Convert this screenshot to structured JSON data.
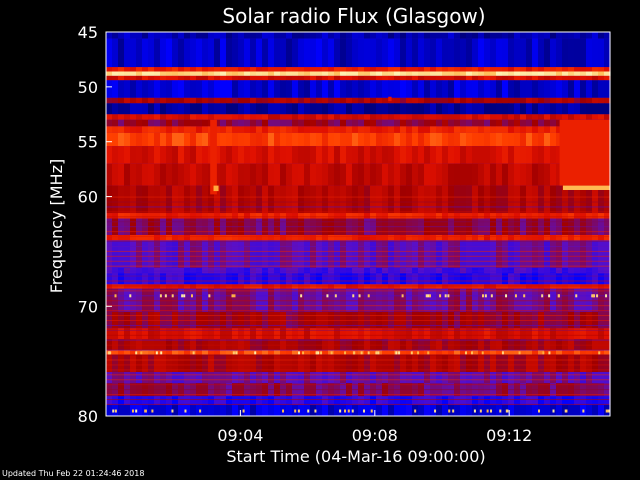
{
  "chart_data": {
    "type": "heatmap",
    "title": "Solar radio Flux (Glasgow)",
    "xlabel": "Start Time (04-Mar-16 09:00:00)",
    "ylabel": "Frequency [MHz]",
    "x_unit": "minutes after 04-Mar-16 09:00:00",
    "xlim": [
      0,
      15
    ],
    "ylim": [
      80,
      45
    ],
    "x_ticks": [
      {
        "value": 4,
        "label": "09:04"
      },
      {
        "value": 8,
        "label": "09:08"
      },
      {
        "value": 12,
        "label": "09:12"
      }
    ],
    "y_ticks": [
      {
        "value": 45,
        "label": "45"
      },
      {
        "value": 50,
        "label": "50"
      },
      {
        "value": 55,
        "label": "55"
      },
      {
        "value": 60,
        "label": "60"
      },
      {
        "value": 70,
        "label": "70"
      },
      {
        "value": 80,
        "label": "80"
      }
    ],
    "colormap": [
      "#000080",
      "#0000ff",
      "#5a10c8",
      "#a00000",
      "#e01000",
      "#ff4000",
      "#ffb040",
      "#fff0b0"
    ],
    "bands": [
      {
        "y0": 45.0,
        "y1": 45.6,
        "level": 0.05
      },
      {
        "y0": 45.6,
        "y1": 48.2,
        "level": 0.08
      },
      {
        "y0": 48.2,
        "y1": 48.6,
        "level": 0.6
      },
      {
        "y0": 48.6,
        "y1": 49.0,
        "level": 0.95
      },
      {
        "y0": 49.0,
        "y1": 49.4,
        "level": 0.55
      },
      {
        "y0": 49.4,
        "y1": 51.0,
        "level": 0.09
      },
      {
        "y0": 51.0,
        "y1": 51.5,
        "level": 0.45
      },
      {
        "y0": 51.5,
        "y1": 52.5,
        "level": 0.02
      },
      {
        "y0": 52.5,
        "y1": 53.0,
        "level": 0.55
      },
      {
        "y0": 53.0,
        "y1": 53.6,
        "level": 0.4
      },
      {
        "y0": 53.6,
        "y1": 54.2,
        "level": 0.62
      },
      {
        "y0": 54.2,
        "y1": 55.4,
        "level": 0.7
      },
      {
        "y0": 55.4,
        "y1": 57.0,
        "level": 0.55
      },
      {
        "y0": 57.0,
        "y1": 59.0,
        "level": 0.5
      },
      {
        "y0": 59.0,
        "y1": 61.5,
        "level": 0.47
      },
      {
        "y0": 61.5,
        "y1": 62.0,
        "level": 0.62
      },
      {
        "y0": 62.0,
        "y1": 63.5,
        "level": 0.38
      },
      {
        "y0": 63.5,
        "y1": 64.0,
        "level": 0.62
      },
      {
        "y0": 64.0,
        "y1": 66.5,
        "level": 0.3
      },
      {
        "y0": 66.5,
        "y1": 67.0,
        "level": 0.25
      },
      {
        "y0": 67.0,
        "y1": 68.0,
        "level": 0.2
      },
      {
        "y0": 68.0,
        "y1": 68.4,
        "level": 0.6
      },
      {
        "y0": 68.4,
        "y1": 70.5,
        "level": 0.33
      },
      {
        "y0": 70.5,
        "y1": 72.0,
        "level": 0.42
      },
      {
        "y0": 72.0,
        "y1": 73.0,
        "level": 0.55
      },
      {
        "y0": 73.0,
        "y1": 74.0,
        "level": 0.45
      },
      {
        "y0": 74.0,
        "y1": 74.4,
        "level": 0.72
      },
      {
        "y0": 74.4,
        "y1": 76.0,
        "level": 0.45
      },
      {
        "y0": 76.0,
        "y1": 77.0,
        "level": 0.3
      },
      {
        "y0": 77.0,
        "y1": 78.2,
        "level": 0.36
      },
      {
        "y0": 78.2,
        "y1": 79.0,
        "level": 0.2
      },
      {
        "y0": 79.0,
        "y1": 80.0,
        "level": 0.1
      }
    ],
    "events": [
      {
        "x0": 3.1,
        "x1": 3.3,
        "y0": 53.0,
        "y1": 59.8,
        "level": 0.62
      },
      {
        "x0": 3.2,
        "x1": 3.35,
        "y0": 59.0,
        "y1": 59.5,
        "level": 0.85
      },
      {
        "x0": 13.5,
        "x1": 15.0,
        "y0": 53.0,
        "y1": 59.0,
        "level": 0.62
      },
      {
        "x0": 13.6,
        "x1": 15.0,
        "y0": 59.0,
        "y1": 59.4,
        "level": 0.88
      },
      {
        "x0": 8.4,
        "x1": 8.5,
        "y0": 50.9,
        "y1": 51.3,
        "level": 0.6
      }
    ]
  },
  "footer": {
    "updated": "Updated Thu Feb 22 01:24:46 2018"
  }
}
